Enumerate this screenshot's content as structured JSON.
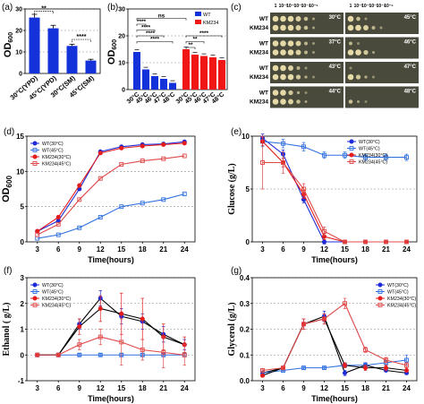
{
  "colors": {
    "wt30": "#1f2bd6",
    "wt45": "#2f6fe0",
    "km30": "#e51c1c",
    "km45": "#e04848",
    "bar_blue": "#1432d9",
    "bar_red": "#f01616",
    "grid": "#8a8a8a",
    "plate_bg": "#4a4a3c",
    "colony": "#e6dba8"
  },
  "panel_a": {
    "label": "(a)",
    "ylabel": "OD",
    "ylabel_sub": "600",
    "chart_data": {
      "type": "bar",
      "categories": [
        "30°C(YPD)",
        "45°C(YPD)",
        "30°C(SM)",
        "45°C(SM)"
      ],
      "values": [
        26,
        21,
        12.8,
        6
      ],
      "errors": [
        1.5,
        1.4,
        0.8,
        0.6
      ],
      "ylim": [
        0,
        30
      ],
      "yticks": [
        0,
        10,
        20,
        30
      ],
      "grid": true,
      "significance": [
        {
          "from": 0,
          "to": 1,
          "label": "**"
        },
        {
          "from": 2,
          "to": 3,
          "label": "****"
        }
      ]
    }
  },
  "panel_b": {
    "label": "(b)",
    "ylabel": "OD",
    "ylabel_sub": "600",
    "legend": [
      "WT",
      "KM234"
    ],
    "chart_data": {
      "type": "bar",
      "categories": [
        "30°C",
        "45°C",
        "46°C",
        "47°C",
        "48°C"
      ],
      "series": [
        {
          "name": "WT",
          "values": [
            14,
            7.5,
            5,
            4,
            2.5
          ]
        },
        {
          "name": "KM234",
          "values": [
            15,
            13,
            12.5,
            12,
            11
          ]
        }
      ],
      "ylim": [
        0,
        30
      ],
      "yticks": [
        0,
        10,
        20,
        30
      ],
      "grid": true,
      "legend_position": "top-right",
      "significance": [
        {
          "from": 0,
          "to": 1,
          "label": "****",
          "level": 5
        },
        {
          "from": 0,
          "to": 2,
          "label": "****",
          "level": 4
        },
        {
          "from": 0,
          "to": 3,
          "label": "****",
          "level": 3
        },
        {
          "from": 0,
          "to": 4,
          "label": "****",
          "level": 2
        },
        {
          "from": 5,
          "to": 6,
          "label": "**",
          "level": 1
        },
        {
          "from": 5,
          "to": 7,
          "label": "**",
          "level": 2
        },
        {
          "from": 5,
          "to": 9,
          "label": "****",
          "level": 3
        },
        {
          "from": 0,
          "to": 5,
          "label": "ns",
          "level": 6
        }
      ]
    }
  },
  "panel_c": {
    "label": "(c)",
    "dilutions": [
      "1",
      "10⁻¹",
      "10⁻²",
      "10⁻³",
      "10⁻⁴",
      "10⁻⁵"
    ],
    "strains": [
      "WT",
      "KM234"
    ],
    "plates": [
      {
        "temp": "30°C",
        "spots": [
          [
            1,
            1,
            1,
            0.9,
            0.7,
            0.4
          ],
          [
            1,
            1,
            1,
            0.9,
            0.7,
            0.4
          ]
        ]
      },
      {
        "temp": "45°C",
        "spots": [
          [
            1,
            0.7,
            0.3,
            0,
            0,
            0
          ],
          [
            1,
            1,
            0.9,
            0.6,
            0.3,
            0
          ]
        ]
      },
      {
        "temp": "37°C",
        "spots": [
          [
            1,
            1,
            1,
            0.9,
            0.6,
            0.3
          ],
          [
            1,
            1,
            1,
            0.9,
            0.6,
            0.3
          ]
        ]
      },
      {
        "temp": "46°C",
        "spots": [
          [
            0.6,
            0.2,
            0,
            0,
            0,
            0
          ],
          [
            1,
            1,
            0.8,
            0.4,
            0,
            0
          ]
        ]
      },
      {
        "temp": "43°C",
        "spots": [
          [
            1,
            1,
            0.9,
            0.6,
            0.3,
            0
          ],
          [
            1,
            1,
            1,
            0.8,
            0.5,
            0.2
          ]
        ]
      },
      {
        "temp": "47°C",
        "spots": [
          [
            0.2,
            0,
            0,
            0,
            0,
            0
          ],
          [
            1,
            0.8,
            0.5,
            0.2,
            0,
            0
          ]
        ]
      },
      {
        "temp": "44°C",
        "spots": [
          [
            1,
            1,
            0.8,
            0.5,
            0.2,
            0
          ],
          [
            1,
            1,
            0.9,
            0.7,
            0.4,
            0
          ]
        ]
      },
      {
        "temp": "48°C",
        "spots": [
          [
            0,
            0,
            0,
            0,
            0,
            0
          ],
          [
            0.7,
            0.4,
            0.1,
            0,
            0,
            0
          ]
        ]
      }
    ]
  },
  "panel_d": {
    "label": "(d)",
    "ylabel": "OD",
    "ylabel_sub": "600",
    "xlabel": "Time(hours)",
    "legend": [
      "WT(30°C)",
      "WT(45°C)",
      "KM234(30°C)",
      "KM234(45°C)"
    ],
    "chart_data": {
      "type": "line",
      "x": [
        3,
        6,
        9,
        12,
        15,
        18,
        21,
        24
      ],
      "series": [
        {
          "name": "WT(30°C)",
          "values": [
            1.5,
            3,
            7.5,
            12.8,
            13.5,
            13.8,
            13.9,
            14.2
          ]
        },
        {
          "name": "WT(45°C)",
          "values": [
            0.5,
            1,
            2,
            3.5,
            5,
            5.5,
            6,
            6.8
          ]
        },
        {
          "name": "KM234(30°C)",
          "values": [
            1.5,
            3.5,
            8,
            12.6,
            13.3,
            13.6,
            13.8,
            14
          ]
        },
        {
          "name": "KM234(45°C)",
          "values": [
            1,
            2.5,
            6,
            9,
            11,
            11.5,
            11.8,
            12.2
          ]
        }
      ],
      "xticks": [
        3,
        6,
        9,
        12,
        15,
        18,
        21,
        24
      ],
      "ylim": [
        0,
        15
      ],
      "yticks": [
        0,
        5,
        10,
        15
      ],
      "grid": true,
      "legend_position": "top-left"
    }
  },
  "panel_e": {
    "label": "(e)",
    "ylabel": "Glucose (g/L)",
    "xlabel": "Time(hours)",
    "legend": [
      "WT(30°C)",
      "WT(45°C)",
      "KM234(30°C)",
      "KM234(45°C)"
    ],
    "chart_data": {
      "type": "line",
      "x": [
        3,
        6,
        9,
        12,
        15,
        18,
        21,
        24
      ],
      "series": [
        {
          "name": "WT(30°C)",
          "values": [
            9.8,
            8.3,
            4,
            0,
            0,
            0,
            0,
            0
          ]
        },
        {
          "name": "WT(45°C)",
          "values": [
            9.5,
            9.3,
            9,
            8.2,
            8.2,
            8,
            8,
            8
          ]
        },
        {
          "name": "KM234(30°C)",
          "values": [
            9.5,
            7.5,
            4.5,
            0.5,
            0,
            0,
            0,
            0
          ]
        },
        {
          "name": "KM234(45°C)",
          "values": [
            7.5,
            7.5,
            5,
            1,
            0,
            0,
            0,
            0
          ]
        }
      ],
      "errors": [
        [
          0.4,
          0.4,
          0.3,
          0.2,
          0.1,
          0.1,
          0.1,
          0.1
        ],
        [
          0.5,
          0.4,
          0.4,
          0.3,
          0.3,
          0.3,
          0.3,
          0.3
        ],
        [
          0.4,
          0.4,
          0.4,
          0.3,
          0.1,
          0.1,
          0.1,
          0.1
        ],
        [
          2.5,
          1,
          0.5,
          0.4,
          0.1,
          0.1,
          0.1,
          0.1
        ]
      ],
      "xticks": [
        3,
        6,
        9,
        12,
        15,
        18,
        21,
        24
      ],
      "ylim": [
        0,
        10
      ],
      "yticks": [
        0,
        5,
        10
      ],
      "grid": true,
      "legend_position": "top-right"
    }
  },
  "panel_f": {
    "label": "(f)",
    "ylabel": "Ethanol ( g/L)",
    "xlabel": "Time(hours)",
    "legend": [
      "WT(30°C)",
      "WT(45°C)",
      "KM234(30°C)",
      "KM234(45°C)"
    ],
    "chart_data": {
      "type": "line",
      "x": [
        3,
        6,
        9,
        12,
        15,
        18,
        21,
        24
      ],
      "series": [
        {
          "name": "WT(30°C)",
          "values": [
            0,
            0,
            1.2,
            2.2,
            1.5,
            1.3,
            0.8,
            0.4
          ]
        },
        {
          "name": "WT(45°C)",
          "values": [
            0,
            0,
            0,
            0,
            0,
            0,
            0,
            0
          ]
        },
        {
          "name": "KM234(30°C)",
          "values": [
            0,
            0,
            1.1,
            1.8,
            1.6,
            1.4,
            0.7,
            0.4
          ]
        },
        {
          "name": "KM234(45°C)",
          "values": [
            0,
            0,
            0.4,
            0.7,
            0.5,
            0.2,
            0.1,
            0
          ]
        }
      ],
      "errors": [
        [
          0.05,
          0.05,
          0.2,
          0.3,
          0.3,
          0.3,
          0.3,
          0.2
        ],
        [
          0.05,
          0.05,
          0.05,
          0.05,
          0.05,
          0.05,
          0.05,
          0.05
        ],
        [
          0.05,
          0.05,
          0.3,
          0.5,
          0.8,
          0.8,
          0.5,
          0.3
        ],
        [
          0.05,
          0.05,
          0.2,
          0.3,
          0.9,
          0.4,
          0.6,
          0.4
        ]
      ],
      "xticks": [
        3,
        6,
        9,
        12,
        15,
        18,
        21,
        24
      ],
      "ylim": [
        -1,
        3
      ],
      "yticks": [
        -1,
        0,
        1,
        2,
        3
      ],
      "grid": true,
      "legend_position": "top-left"
    }
  },
  "panel_g": {
    "label": "(g)",
    "ylabel": "Glycerol (g/L)",
    "xlabel": "Time(hours)",
    "legend": [
      "WT(30°C)",
      "WT(45°C)",
      "KM234(30°C)",
      "KM234(45°C)"
    ],
    "chart_data": {
      "type": "line",
      "x": [
        3,
        6,
        9,
        12,
        15,
        18,
        21,
        24
      ],
      "series": [
        {
          "name": "WT(30°C)",
          "values": [
            0.03,
            0.05,
            0.22,
            0.25,
            0.03,
            0.06,
            0.04,
            0.03
          ]
        },
        {
          "name": "WT(45°C)",
          "values": [
            0.03,
            0.04,
            0.05,
            0.05,
            0.06,
            0.06,
            0.07,
            0.08
          ]
        },
        {
          "name": "KM234(30°C)",
          "values": [
            0.02,
            0.05,
            0.22,
            0.24,
            0.06,
            0.05,
            0.05,
            0.04
          ]
        },
        {
          "name": "KM234(45°C)",
          "values": [
            0.04,
            0.05,
            0.22,
            0.24,
            0.3,
            0.12,
            0.08,
            0.06
          ]
        }
      ],
      "errors": [
        [
          0.005,
          0.005,
          0.02,
          0.02,
          0.01,
          0.01,
          0.005,
          0.005
        ],
        [
          0.005,
          0.005,
          0.005,
          0.005,
          0.005,
          0.005,
          0.01,
          0.02
        ],
        [
          0.005,
          0.005,
          0.02,
          0.02,
          0.01,
          0.01,
          0.01,
          0.005
        ],
        [
          0.005,
          0.005,
          0.02,
          0.02,
          0.02,
          0.01,
          0.01,
          0.01
        ]
      ],
      "xticks": [
        3,
        6,
        9,
        12,
        15,
        18,
        21,
        24
      ],
      "ylim": [
        0,
        0.4
      ],
      "yticks": [
        0,
        0.1,
        0.2,
        0.3,
        0.4
      ],
      "grid": true,
      "legend_position": "top-right"
    }
  }
}
